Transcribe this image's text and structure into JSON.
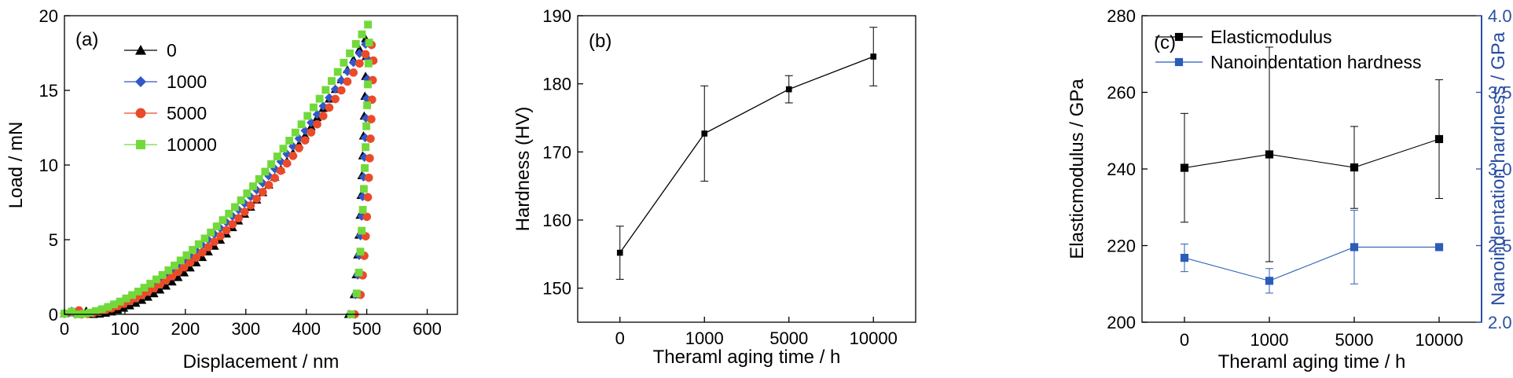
{
  "chart_data": [
    {
      "type": "scatter",
      "panel_label": "(a)",
      "xlabel": "Displacement / nm",
      "ylabel": "Load / mN",
      "xlim": [
        0,
        650
      ],
      "ylim": [
        0,
        20
      ],
      "xticks": [
        0,
        100,
        200,
        300,
        400,
        500,
        600
      ],
      "yticks": [
        0,
        5,
        10,
        15,
        20
      ],
      "legend_position": "top-left",
      "series": [
        {
          "name": "0",
          "color": "#000000",
          "marker": "triangle",
          "loading": {
            "x0": 48,
            "xmax": 500,
            "ymax": 18.6,
            "exp": 1.72
          },
          "unloading": {
            "xmax": 500,
            "xmin": 470,
            "ymax": 18.6
          }
        },
        {
          "name": "1000",
          "color": "#3158c8",
          "marker": "diamond",
          "loading": {
            "x0": 18,
            "xmax": 503,
            "ymax": 18.4,
            "exp": 1.65
          },
          "unloading": {
            "xmax": 503,
            "xmin": 472,
            "ymax": 18.4
          }
        },
        {
          "name": "5000",
          "color": "#ea4a2a",
          "marker": "circle",
          "loading": {
            "x0": 28,
            "xmax": 512,
            "ymax": 18.3,
            "exp": 1.68
          },
          "unloading": {
            "xmax": 512,
            "xmin": 480,
            "ymax": 18.3
          }
        },
        {
          "name": "10000",
          "color": "#72d93a",
          "marker": "square",
          "loading": {
            "x0": 22,
            "xmax": 505,
            "ymax": 19.6,
            "exp": 1.62
          },
          "unloading": {
            "xmax": 505,
            "xmin": 474,
            "ymax": 19.6
          }
        }
      ]
    },
    {
      "type": "line",
      "panel_label": "(b)",
      "xlabel": "Theraml aging time / h",
      "ylabel": "Hardness (HV)",
      "categories": [
        "0",
        "1000",
        "5000",
        "10000"
      ],
      "ylim": [
        145,
        190
      ],
      "yticks": [
        150,
        160,
        170,
        180,
        190
      ],
      "series": [
        {
          "name": "",
          "color": "#000000",
          "marker": "square",
          "values": [
            155.2,
            172.7,
            179.2,
            184.0
          ],
          "errors": [
            3.9,
            7.0,
            2.0,
            4.3
          ]
        }
      ]
    },
    {
      "type": "line",
      "panel_label": "(c)",
      "xlabel": "Theraml aging time / h",
      "ylabel": "Elasticmodulus / GPa",
      "ylabel_right": "Nanoindentation hardness / GPa",
      "categories": [
        "0",
        "1000",
        "5000",
        "10000"
      ],
      "ylim": [
        200,
        280
      ],
      "yticks": [
        200,
        220,
        240,
        260,
        280
      ],
      "ylim_right": [
        2.0,
        4.0
      ],
      "yticks_right": [
        "2.0",
        "2.5",
        "3.0",
        "3.5",
        "4.0"
      ],
      "right_axis_color": "#2b4fa3",
      "legend_position": "top-right",
      "series": [
        {
          "name": "Elasticmodulus",
          "axis": "left",
          "color": "#000000",
          "marker": "square",
          "values": [
            240.3,
            243.8,
            240.4,
            247.8
          ],
          "errors": [
            14.2,
            28.0,
            10.7,
            15.5
          ]
        },
        {
          "name": "Nanoindentation hardness",
          "axis": "right",
          "color": "#2b5cb8",
          "marker": "square",
          "values": [
            2.42,
            2.27,
            2.49,
            2.49
          ],
          "errors": [
            0.09,
            0.08,
            0.24,
            0.0
          ]
        }
      ]
    }
  ]
}
